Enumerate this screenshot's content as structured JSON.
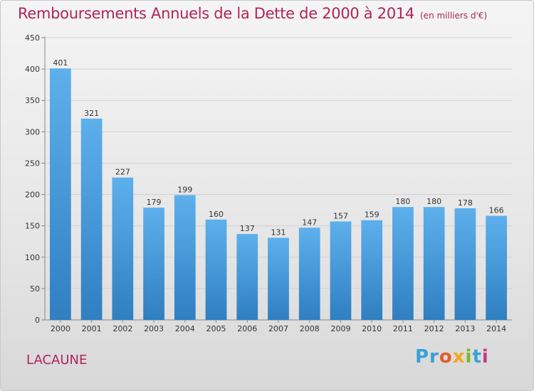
{
  "chart_data": {
    "type": "bar",
    "title": "Remboursements Annuels de la Dette de 2000 à 2014",
    "subtitle": "(en milliers d'€)",
    "categories": [
      "2000",
      "2001",
      "2002",
      "2003",
      "2004",
      "2005",
      "2006",
      "2007",
      "2008",
      "2009",
      "2010",
      "2011",
      "2012",
      "2013",
      "2014"
    ],
    "values": [
      401,
      321,
      227,
      179,
      199,
      160,
      137,
      131,
      147,
      157,
      159,
      180,
      180,
      178,
      166
    ],
    "ylim": [
      0,
      450
    ],
    "yticks": [
      "0",
      "50",
      "100",
      "150",
      "200",
      "250",
      "300",
      "350",
      "400",
      "450"
    ],
    "grid": true,
    "bar_color": "#4a9fe0"
  },
  "place_name": "LACAUNE",
  "logo": {
    "letters": [
      "Pr",
      "o",
      "x",
      "i",
      "t",
      "i"
    ]
  }
}
